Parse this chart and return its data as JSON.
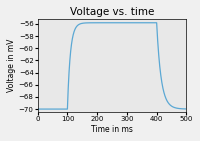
{
  "title": "Voltage vs. time",
  "xlabel": "Time in ms",
  "ylabel": "Voltage in mV",
  "xlim": [
    0,
    500
  ],
  "ylim": [
    -70.5,
    -55.2
  ],
  "yticks": [
    -70,
    -68,
    -66,
    -64,
    -62,
    -60,
    -58,
    -56
  ],
  "xticks": [
    0,
    100,
    200,
    300,
    400,
    500
  ],
  "line_color": "#5ba8d4",
  "line_width": 0.9,
  "v_rest": -70.0,
  "v_plateau": -55.8,
  "tau_rise": 10.0,
  "tau_decay": 15.0,
  "t_start": 100,
  "t_end": 400,
  "t_total": 500,
  "dt": 0.25,
  "figsize": [
    2.0,
    1.41
  ],
  "dpi": 100,
  "title_fontsize": 7.5,
  "label_fontsize": 5.5,
  "tick_fontsize": 5,
  "bg_color": "#e8e8e8",
  "fig_bg_color": "#f0f0f0"
}
